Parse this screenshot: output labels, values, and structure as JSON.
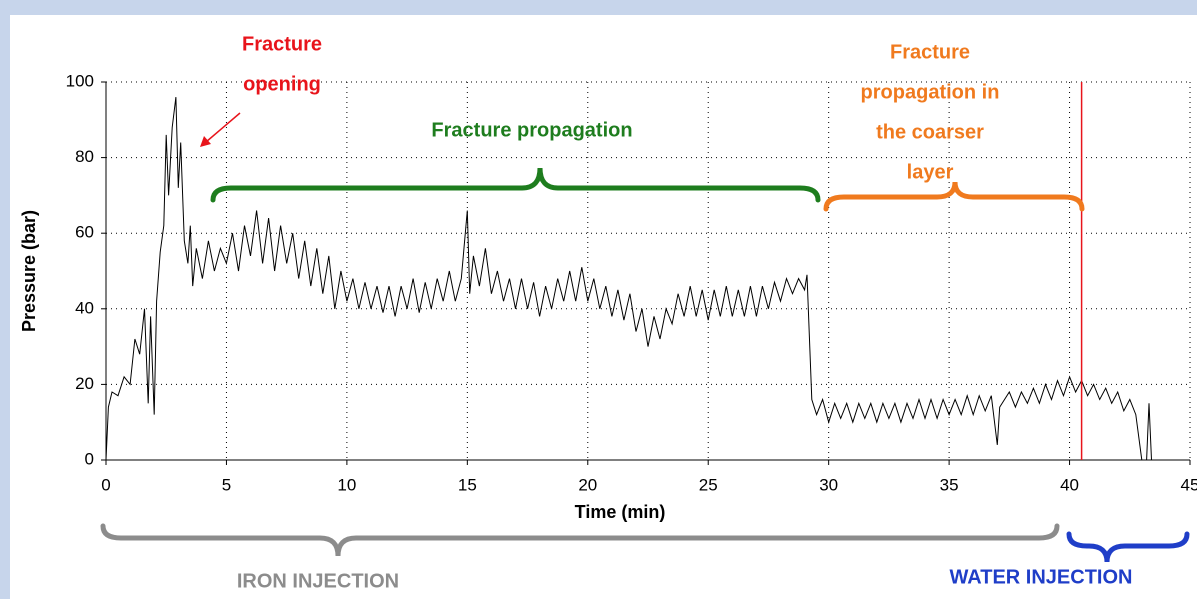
{
  "chart_data": {
    "type": "line",
    "xlabel": "Time (min)",
    "ylabel": "Pressure (bar)",
    "xlim": [
      0,
      45
    ],
    "xticks": [
      0,
      5,
      10,
      15,
      20,
      25,
      30,
      35,
      40,
      45
    ],
    "ylim": [
      0,
      100
    ],
    "yticks": [
      0,
      20,
      40,
      60,
      80,
      100
    ],
    "grid": true,
    "vline": {
      "x": 40.5,
      "color": "#e8141b"
    },
    "annotations": [
      {
        "lines": [
          "Fracture",
          "opening"
        ],
        "color": "#e8141b"
      },
      {
        "lines": [
          "Fracture propagation"
        ],
        "color": "#1e7d1e"
      },
      {
        "lines": [
          "Fracture",
          "propagation in",
          "the coarser",
          "layer"
        ],
        "color": "#f07a1e"
      },
      {
        "lines": [
          "IRON INJECTION"
        ],
        "color": "#8c8c8c"
      },
      {
        "lines": [
          "WATER INJECTION"
        ],
        "color": "#1f3ec8"
      }
    ],
    "series": [
      {
        "color": "#000000",
        "x": [
          0,
          0.1,
          0.25,
          0.5,
          0.75,
          1,
          1.2,
          1.4,
          1.6,
          1.75,
          1.85,
          2.0,
          2.1,
          2.25,
          2.4,
          2.5,
          2.6,
          2.75,
          2.9,
          3.0,
          3.1,
          3.25,
          3.4,
          3.5,
          3.6,
          3.75,
          4.0,
          4.25,
          4.5,
          4.75,
          5.0,
          5.25,
          5.5,
          5.75,
          6.0,
          6.25,
          6.5,
          6.75,
          7.0,
          7.25,
          7.5,
          7.75,
          8.0,
          8.25,
          8.5,
          8.75,
          9.0,
          9.25,
          9.5,
          9.75,
          10,
          10.25,
          10.5,
          10.75,
          11,
          11.25,
          11.5,
          11.75,
          12,
          12.25,
          12.5,
          12.75,
          13,
          13.25,
          13.5,
          13.75,
          14,
          14.25,
          14.5,
          14.75,
          15,
          15.1,
          15.25,
          15.5,
          15.75,
          16,
          16.25,
          16.5,
          16.75,
          17,
          17.25,
          17.5,
          17.75,
          18,
          18.25,
          18.5,
          18.75,
          19,
          19.25,
          19.5,
          19.75,
          20,
          20.25,
          20.5,
          20.75,
          21,
          21.25,
          21.5,
          21.75,
          22,
          22.25,
          22.5,
          22.75,
          23,
          23.25,
          23.5,
          23.75,
          24,
          24.25,
          24.5,
          24.75,
          25,
          25.25,
          25.5,
          25.75,
          26,
          26.25,
          26.5,
          26.75,
          27,
          27.25,
          27.5,
          27.75,
          28,
          28.25,
          28.5,
          28.75,
          29,
          29.1,
          29.3,
          29.5,
          29.75,
          30,
          30.25,
          30.5,
          30.75,
          31,
          31.25,
          31.5,
          31.75,
          32,
          32.25,
          32.5,
          32.75,
          33,
          33.25,
          33.5,
          33.75,
          34,
          34.25,
          34.5,
          34.75,
          35,
          35.25,
          35.5,
          35.75,
          36,
          36.25,
          36.5,
          36.75,
          37,
          37.1,
          37.5,
          37.75,
          38,
          38.25,
          38.5,
          38.75,
          39,
          39.25,
          39.5,
          39.75,
          40,
          40.25,
          40.5,
          40.75,
          41,
          41.25,
          41.5,
          41.75,
          42,
          42.25,
          42.5,
          42.75,
          43,
          43.2,
          43.3,
          43.4
        ],
        "values": [
          0,
          14,
          18,
          17,
          22,
          20,
          32,
          28,
          40,
          15,
          38,
          12,
          42,
          55,
          62,
          86,
          70,
          88,
          96,
          72,
          84,
          58,
          52,
          62,
          46,
          56,
          48,
          58,
          50,
          56,
          52,
          60,
          50,
          62,
          54,
          66,
          52,
          64,
          50,
          62,
          52,
          60,
          48,
          58,
          46,
          56,
          44,
          54,
          40,
          50,
          42,
          48,
          40,
          47,
          40,
          46,
          39,
          46,
          38,
          46,
          40,
          48,
          39,
          47,
          40,
          48,
          42,
          50,
          42,
          48,
          66,
          44,
          54,
          46,
          56,
          44,
          50,
          42,
          48,
          40,
          48,
          40,
          47,
          38,
          46,
          40,
          48,
          42,
          50,
          42,
          51,
          42,
          48,
          40,
          46,
          38,
          45,
          37,
          44,
          34,
          40,
          30,
          38,
          32,
          40,
          36,
          44,
          38,
          46,
          38,
          45,
          37,
          45,
          38,
          46,
          38,
          45,
          38,
          46,
          38,
          46,
          40,
          47,
          42,
          48,
          44,
          48,
          45,
          49,
          16,
          12,
          16,
          10,
          15,
          11,
          15,
          10,
          15,
          11,
          15,
          10,
          15,
          11,
          15,
          10,
          15,
          11,
          16,
          11,
          16,
          11,
          16,
          12,
          16,
          12,
          17,
          12,
          17,
          13,
          17,
          4,
          14,
          18,
          14,
          18,
          15,
          19,
          15,
          20,
          16,
          21,
          17,
          22,
          18,
          21,
          17,
          20,
          16,
          19,
          15,
          18,
          13,
          16,
          12,
          0,
          0,
          15,
          0
        ]
      }
    ]
  }
}
